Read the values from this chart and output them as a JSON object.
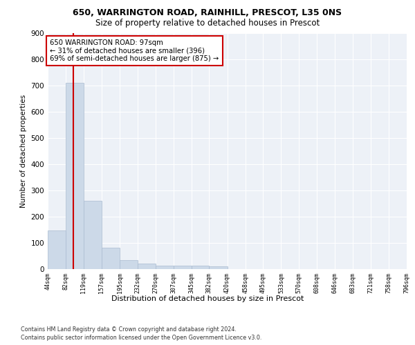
{
  "title1": "650, WARRINGTON ROAD, RAINHILL, PRESCOT, L35 0NS",
  "title2": "Size of property relative to detached houses in Prescot",
  "xlabel": "Distribution of detached houses by size in Prescot",
  "ylabel": "Number of detached properties",
  "footer1": "Contains HM Land Registry data © Crown copyright and database right 2024.",
  "footer2": "Contains public sector information licensed under the Open Government Licence v3.0.",
  "annotation_line1": "650 WARRINGTON ROAD: 97sqm",
  "annotation_line2": "← 31% of detached houses are smaller (396)",
  "annotation_line3": "69% of semi-detached houses are larger (875) →",
  "property_size_sqm": 97,
  "bar_edges": [
    44,
    82,
    119,
    157,
    195,
    232,
    270,
    307,
    345,
    382,
    420,
    458,
    495,
    533,
    570,
    608,
    646,
    683,
    721,
    758,
    796
  ],
  "bar_heights": [
    148,
    710,
    260,
    82,
    35,
    20,
    12,
    12,
    12,
    10,
    0,
    0,
    0,
    0,
    0,
    0,
    0,
    0,
    0,
    0
  ],
  "bar_color": "#ccd9e8",
  "bar_edge_color": "#aabbd0",
  "vline_color": "#cc0000",
  "vline_x": 97,
  "annotation_box_color": "#cc0000",
  "background_color": "#edf1f7",
  "grid_color": "#ffffff",
  "ylim": [
    0,
    900
  ],
  "xlim": [
    44,
    796
  ]
}
